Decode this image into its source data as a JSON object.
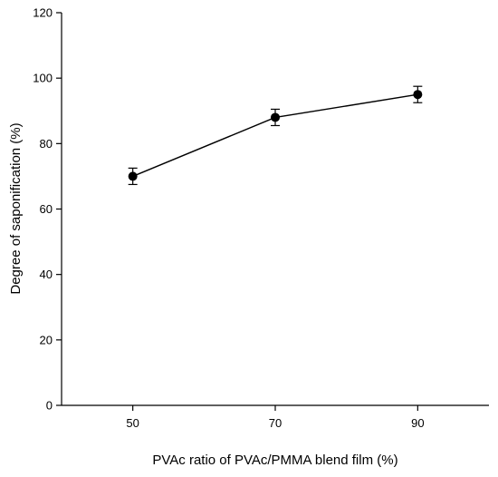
{
  "chart_data": {
    "type": "line",
    "title": "",
    "xlabel": "PVAc ratio of PVAc/PMMA blend film (%)",
    "ylabel": "Degree of saponification (%)",
    "x": [
      50,
      70,
      90
    ],
    "x_ticks": [
      "50",
      "70",
      "90"
    ],
    "xlim": [
      40,
      100
    ],
    "ylim": [
      0,
      120
    ],
    "y_ticks": [
      "0",
      "20",
      "40",
      "60",
      "80",
      "100",
      "120"
    ],
    "series": [
      {
        "values": [
          70,
          88,
          95
        ],
        "error": [
          2.5,
          2.5,
          2.5
        ],
        "marker": "circle",
        "color": "#000000"
      }
    ],
    "grid": false,
    "legend": "none"
  }
}
